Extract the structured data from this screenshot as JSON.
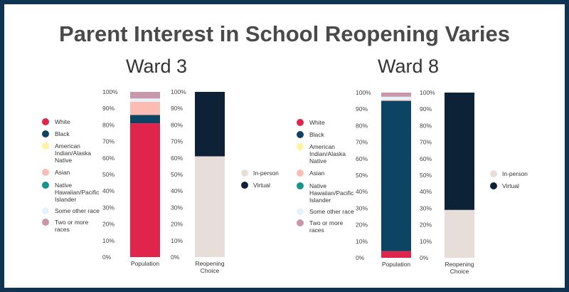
{
  "title": "Parent Interest in School Reopening Varies",
  "colors": {
    "White": "#e0244c",
    "Black": "#0d4464",
    "American Indian/Alaska Native": "#fff2a0",
    "Asian": "#fbbcb4",
    "Native Hawaiian/Pacific Islander": "#15948f",
    "Some other race": "#e7f1fb",
    "Two or more races": "#c997ab",
    "In-person": "#e7ddd9",
    "Virtual": "#0d2137",
    "frame": "#0f3350"
  },
  "chart_data": [
    {
      "type": "bar",
      "title": "Ward 3",
      "subchart": "Population",
      "xlabel": "Population",
      "ylim": [
        0,
        100
      ],
      "tick_labels": [
        "0%",
        "10%",
        "20%",
        "30%",
        "40%",
        "50%",
        "60%",
        "70%",
        "80%",
        "90%",
        "100%"
      ],
      "series": [
        {
          "name": "White",
          "value": 81
        },
        {
          "name": "Black",
          "value": 5
        },
        {
          "name": "American Indian/Alaska Native",
          "value": 0
        },
        {
          "name": "Asian",
          "value": 8
        },
        {
          "name": "Native Hawaiian/Pacific Islander",
          "value": 0
        },
        {
          "name": "Some other race",
          "value": 2
        },
        {
          "name": "Two or more races",
          "value": 4
        }
      ]
    },
    {
      "type": "bar",
      "title": "Ward 3",
      "subchart": "Reopening Choice",
      "xlabel": "Reopening Choice",
      "ylim": [
        0,
        100
      ],
      "tick_labels": [
        "0%",
        "10%",
        "20%",
        "30%",
        "40%",
        "50%",
        "60%",
        "70%",
        "80%",
        "90%",
        "100%"
      ],
      "series": [
        {
          "name": "In-person",
          "value": 61
        },
        {
          "name": "Virtual",
          "value": 39
        }
      ]
    },
    {
      "type": "bar",
      "title": "Ward 8",
      "subchart": "Population",
      "xlabel": "Population",
      "ylim": [
        0,
        100
      ],
      "tick_labels": [
        "0%",
        "10%",
        "20%",
        "30%",
        "40%",
        "50%",
        "60%",
        "70%",
        "80%",
        "90%",
        "100%"
      ],
      "series": [
        {
          "name": "White",
          "value": 4
        },
        {
          "name": "Black",
          "value": 91
        },
        {
          "name": "American Indian/Alaska Native",
          "value": 0
        },
        {
          "name": "Asian",
          "value": 0.5
        },
        {
          "name": "Native Hawaiian/Pacific Islander",
          "value": 0
        },
        {
          "name": "Some other race",
          "value": 2
        },
        {
          "name": "Two or more races",
          "value": 2.5
        }
      ]
    },
    {
      "type": "bar",
      "title": "Ward 8",
      "subchart": "Reopening Choice",
      "xlabel": "Reopening Choice",
      "ylim": [
        0,
        100
      ],
      "tick_labels": [
        "0%",
        "10%",
        "20%",
        "30%",
        "40%",
        "50%",
        "60%",
        "70%",
        "80%",
        "90%",
        "100%"
      ],
      "series": [
        {
          "name": "In-person",
          "value": 29
        },
        {
          "name": "Virtual",
          "value": 71
        }
      ]
    }
  ],
  "legend_race": [
    "White",
    "Black",
    "American Indian/Alaska Native",
    "Asian",
    "Native Hawaiian/Pacific Islander",
    "Some other race",
    "Two or more races"
  ],
  "legend_choice": [
    "In-person",
    "Virtual"
  ]
}
